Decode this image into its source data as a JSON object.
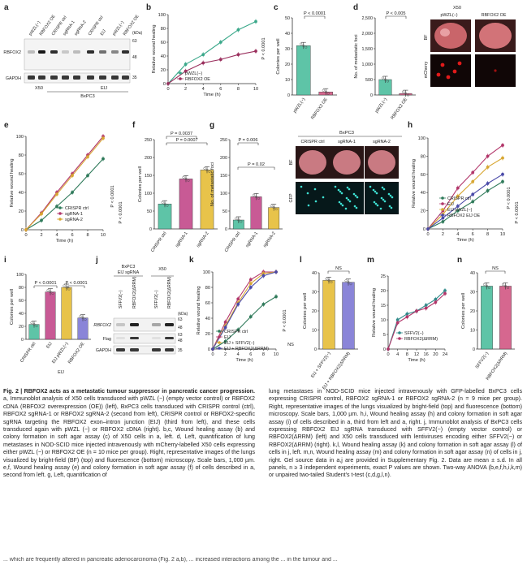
{
  "panels": {
    "a": {
      "letter": "a",
      "lanes": [
        "pWZL(−)",
        "RBFOX2 OE",
        "CRISPR ctrl",
        "sgRNA-1",
        "sgRNA-2",
        "CRISPR ctrl",
        "EIJ",
        "pWZL(−)",
        "RBFOX2 OE"
      ],
      "kda_label": "(kDa)",
      "kda": [
        "63",
        "48",
        "35"
      ],
      "rows": [
        "RBFOX2",
        "GAPDH"
      ],
      "group1": "X50",
      "group2": "EIJ",
      "group3": "BxPC3"
    },
    "b": {
      "letter": "b",
      "ylabel": "Relative wound healing",
      "xlabel": "Time (h)",
      "stat": "P < 0.0001"
    },
    "c": {
      "letter": "c",
      "ylabel": "Colonies per well",
      "stat": "P < 0.0001"
    },
    "d": {
      "letter": "d",
      "ylabel": "No. of metastatic foci",
      "stat": "P < 0.005",
      "img_group": "X50",
      "img_cols": [
        "pWZL(−)",
        "RBFOX2 OE"
      ],
      "img_rows": [
        "BF",
        "mCherry"
      ]
    },
    "e": {
      "letter": "e",
      "ylabel": "Relative wound healing",
      "xlabel": "Time (h)",
      "stat1": "P < 0.0001",
      "stat2": "P < 0.0001"
    },
    "f": {
      "letter": "f",
      "ylabel": "Colonies per well",
      "stat1": "P = 0.0037",
      "stat2": "P = 0.0007"
    },
    "g": {
      "letter": "g",
      "ylabel": "No. of metastatic foci",
      "stat1": "P = 0.006",
      "stat2": "P = 0.02",
      "img_group": "BxPC3",
      "img_cols": [
        "CRISPR ctrl",
        "sgRNA-1",
        "sgRNA-2"
      ],
      "img_rows": [
        "BF",
        "GFP"
      ]
    },
    "h": {
      "letter": "h",
      "ylabel": "Relative wound healing",
      "xlabel": "Time (h)",
      "stat1": "P < 0.0001",
      "stat2": "P < 0.0001"
    },
    "i": {
      "letter": "i",
      "ylabel": "Colonies per well",
      "stat1": "P < 0.0001",
      "stat2": "P < 0.0001",
      "group": "EIJ"
    },
    "j": {
      "letter": "j",
      "group1": "BxPC3",
      "group1b": "EIJ sgRNA",
      "group2": "X50",
      "lanes": [
        "SFFV2(−)",
        "RBFOX2(ΔRRM)",
        "SFFV2(−)",
        "RBFOX2(ΔRRM)"
      ],
      "rows": [
        "RBFOX2",
        "Flag",
        "GAPDH"
      ],
      "kda": [
        "63",
        "48",
        "63",
        "48",
        "35"
      ],
      "kda_label": "(kDa)"
    },
    "k": {
      "letter": "k",
      "ylabel": "Relative wound healing",
      "xlabel": "Time (h)",
      "stat1": "P < 0.0001",
      "stat2": "NS"
    },
    "l": {
      "letter": "l",
      "ylabel": "Colonies per well",
      "stat": "NS"
    },
    "m": {
      "letter": "m",
      "ylabel": "Relative wound healing",
      "xlabel": "Time (h)"
    },
    "n": {
      "letter": "n",
      "ylabel": "Colonies per well",
      "stat": "NS"
    }
  },
  "chart_data": [
    {
      "panel": "b",
      "type": "line",
      "xlabel": "Time (h)",
      "ylabel": "Relative wound healing",
      "x": [
        0,
        2,
        4,
        6,
        8,
        10
      ],
      "ylim": [
        0,
        100
      ],
      "xticks": [
        "0",
        "2",
        "4",
        "6",
        "8",
        "10"
      ],
      "yticks": [
        "0",
        "20",
        "40",
        "60",
        "80",
        "100"
      ],
      "series": [
        {
          "name": "pWZL(−)",
          "color": "#3aa88a",
          "values": [
            0,
            28,
            42,
            60,
            78,
            90
          ]
        },
        {
          "name": "RBFOX2 OE",
          "color": "#9a2f5d",
          "values": [
            0,
            18,
            30,
            35,
            42,
            47
          ]
        }
      ]
    },
    {
      "panel": "c",
      "type": "bar",
      "categories": [
        "pWZL(−)",
        "RBFOX2 OE"
      ],
      "values": [
        32,
        2
      ],
      "colors": [
        "#5ec4a7",
        "#d6678f"
      ],
      "ylim": [
        0,
        50
      ],
      "yticks": [
        "0",
        "10",
        "20",
        "30",
        "40",
        "50"
      ]
    },
    {
      "panel": "d",
      "type": "bar",
      "categories": [
        "pWZL(−)",
        "RBFOX2 OE"
      ],
      "values": [
        500,
        50
      ],
      "colors": [
        "#5ec4a7",
        "#d6678f"
      ],
      "ylim": [
        0,
        2500
      ],
      "yticks": [
        "0",
        "500",
        "1,000",
        "1,500",
        "2,000",
        "2,500"
      ]
    },
    {
      "panel": "e",
      "type": "line",
      "xlabel": "Time (h)",
      "ylabel": "Relative wound healing",
      "x": [
        0,
        2,
        4,
        6,
        8,
        10
      ],
      "ylim": [
        0,
        100
      ],
      "xticks": [
        "0",
        "2",
        "4",
        "6",
        "8",
        "10"
      ],
      "yticks": [
        "0",
        "20",
        "40",
        "60",
        "80",
        "100"
      ],
      "series": [
        {
          "name": "CRISPR ctrl",
          "color": "#2f7a5a",
          "values": [
            0,
            10,
            25,
            40,
            58,
            76
          ]
        },
        {
          "name": "sgRNA-1",
          "color": "#b2366a",
          "values": [
            0,
            18,
            40,
            60,
            80,
            100
          ]
        },
        {
          "name": "sgRNA-2",
          "color": "#d8a733",
          "values": [
            0,
            17,
            38,
            58,
            78,
            98
          ]
        }
      ]
    },
    {
      "panel": "f",
      "type": "bar",
      "categories": [
        "CRISPR ctrl",
        "sgRNA-1",
        "sgRNA-2"
      ],
      "values": [
        70,
        140,
        165
      ],
      "colors": [
        "#5ec4a7",
        "#c85a95",
        "#e8c34a"
      ],
      "ylim": [
        0,
        250
      ],
      "yticks": [
        "0",
        "50",
        "100",
        "150",
        "200",
        "250"
      ]
    },
    {
      "panel": "g",
      "type": "bar",
      "categories": [
        "CRISPR ctrl",
        "sgRNA-1",
        "sgRNA-2"
      ],
      "values": [
        25,
        90,
        60
      ],
      "colors": [
        "#5ec4a7",
        "#c85a95",
        "#e8c34a"
      ],
      "ylim": [
        0,
        250
      ],
      "yticks": [
        "0",
        "50",
        "100",
        "150",
        "200",
        "250"
      ]
    },
    {
      "panel": "h",
      "type": "line",
      "xlabel": "Time (h)",
      "ylabel": "Relative wound healing",
      "x": [
        0,
        2,
        4,
        6,
        8,
        10
      ],
      "ylim": [
        0,
        100
      ],
      "xticks": [
        "0",
        "2",
        "4",
        "6",
        "8",
        "10"
      ],
      "yticks": [
        "0",
        "20",
        "40",
        "60",
        "80",
        "100"
      ],
      "series": [
        {
          "name": "CRISPR ctrl",
          "color": "#2f7a5a",
          "values": [
            0,
            8,
            20,
            30,
            42,
            52
          ]
        },
        {
          "name": "EIJ",
          "color": "#b2366a",
          "values": [
            0,
            20,
            45,
            62,
            80,
            92
          ]
        },
        {
          "name": "EIJ pWZL(−)",
          "color": "#d8a733",
          "values": [
            0,
            16,
            36,
            52,
            68,
            78
          ]
        },
        {
          "name": "RBFOX2 EIJ OE",
          "color": "#4a4aa8",
          "values": [
            0,
            12,
            25,
            38,
            50,
            60
          ]
        }
      ]
    },
    {
      "panel": "i",
      "type": "bar",
      "categories": [
        "CRISPR ctrl",
        "EIJ",
        "EIJ pWZL(−)",
        "RBFOX2 OE"
      ],
      "values": [
        23,
        73,
        80,
        33
      ],
      "colors": [
        "#5ec4a7",
        "#c85a95",
        "#e8c34a",
        "#8a85d8"
      ],
      "ylim": [
        0,
        100
      ],
      "yticks": [
        "0",
        "20",
        "40",
        "60",
        "80",
        "100"
      ]
    },
    {
      "panel": "k",
      "type": "line",
      "xlabel": "Time (h)",
      "ylabel": "Relative wound healing",
      "x": [
        0,
        2,
        4,
        6,
        8,
        10
      ],
      "ylim": [
        0,
        100
      ],
      "xticks": [
        "0",
        "2",
        "4",
        "6",
        "8",
        "10"
      ],
      "yticks": [
        "0",
        "20",
        "40",
        "60",
        "80",
        "100"
      ],
      "series": [
        {
          "name": "CRISPR ctrl",
          "color": "#2f7a5a",
          "values": [
            0,
            10,
            25,
            42,
            58,
            68
          ]
        },
        {
          "name": "EIJ",
          "color": "#b2366a",
          "values": [
            0,
            35,
            65,
            90,
            100,
            100
          ]
        },
        {
          "name": "EIJ + SFFV2(−)",
          "color": "#d8a733",
          "values": [
            0,
            30,
            60,
            85,
            98,
            100
          ]
        },
        {
          "name": "EIJ + RBFOX2(ΔRRM)",
          "color": "#4a4aa8",
          "values": [
            0,
            28,
            58,
            80,
            95,
            100
          ]
        }
      ]
    },
    {
      "panel": "l",
      "type": "bar",
      "categories": [
        "EIJ + SFFV2(−)",
        "EIJ + RBFOX2(ΔRRM)"
      ],
      "values": [
        36,
        35
      ],
      "colors": [
        "#e8c34a",
        "#8a85d8"
      ],
      "ylim": [
        0,
        40
      ],
      "yticks": [
        "0",
        "10",
        "20",
        "30",
        "40"
      ]
    },
    {
      "panel": "m",
      "type": "line",
      "xlabel": "Time (h)",
      "ylabel": "Relative wound healing",
      "x": [
        0,
        4,
        8,
        12,
        16,
        20,
        24
      ],
      "ylim": [
        0,
        25
      ],
      "xticks": [
        "0",
        "4",
        "8",
        "12",
        "16",
        "20",
        "24"
      ],
      "yticks": [
        "0",
        "5",
        "10",
        "15",
        "20",
        "25"
      ],
      "series": [
        {
          "name": "SFFV2(−)",
          "color": "#2f8a8a",
          "values": [
            0,
            10,
            12,
            13,
            15,
            17,
            20
          ]
        },
        {
          "name": "RBFOX2(ΔRRM)",
          "color": "#b2366a",
          "values": [
            0,
            9,
            11,
            13,
            14,
            16,
            19
          ]
        }
      ]
    },
    {
      "panel": "n",
      "type": "bar",
      "categories": [
        "SFFV2(−)",
        "RBFOX2(ΔRRM)"
      ],
      "values": [
        33,
        33
      ],
      "colors": [
        "#5ec4a7",
        "#d6678f"
      ],
      "ylim": [
        0,
        40
      ],
      "yticks": [
        "0",
        "10",
        "20",
        "30",
        "40"
      ]
    }
  ],
  "caption": {
    "title": "Fig. 2 | RBFOX2 acts as a metastatic tumour suppressor in pancreatic cancer progression.",
    "left": "a, Immunoblot analysis of X50 cells transduced with pWZL (−) (empty vector control) or RBFOX2 cDNA (RBFOX2 overexpression (OE)) (left), BxPC3 cells transduced with CRISPR control (ctrl), RBFOX2 sgRNA-1 or RBFOX2 sgRNA-2 (second from left), CRISPR control or RBFOX2-specific sgRNA targeting the RBFOX2 exon–intron junction (EIJ) (third from left), and these cells transduced again with pWZL (−) or RBFOX2 cDNA (right). b,c, Wound healing assay (b) and colony formation in soft agar assay (c) of X50 cells in a, left. d, Left, quantification of lung metastases in NOD-SCID mice injected intravenously with mCherry-labelled X50 cells expressing either pWZL (−) or RBFOX2 OE (n = 10 mice per group). Right, representative images of the lungs visualized by bright-field (BF) (top) and fluorescence (bottom) microscopy. Scale bars, 1,000 µm. e,f, Wound healing assay (e) and colony formation in soft agar assay (f) of cells described in a, second from left. g, Left, quantification of",
    "right": "lung metastases in NOD-SCID mice injected intravenously with GFP-labelled BxPC3 cells expressing CRISPR control, RBFOX2 sgRNA-1 or RBFOX2 sgRNA-2 (n = 9 mice per group). Right, representative images of the lungs visualized by bright-field (top) and fluorescence (bottom) microscopy. Scale bars, 1,000 µm. h,i, Wound healing assay (h) and colony formation in soft agar assay (i) of cells described in a, third from left and a, right. j, Immunoblot analysis of BxPC3 cells expressing RBFOX2 EIJ sgRNA transduced with SFFV2(−) (empty vector control) or RBFOX2(ΔRRM) (left) and X50 cells transduced with lentiviruses encoding either SFFV2(−) or RBFOX2(ΔRRM) (right). k,l, Wound healing assay (k) and colony formation in soft agar assay (l) of cells in j, left. m,n, Wound healing assay (m) and colony formation in soft agar assay (n) of cells in j, right. Gel source data in a,j are provided in Supplementary Fig. 2. Data are mean ± s.d. In all panels, n ≥ 3 independent experiments, exact P values are shown. Two-way ANOVA (b,e,f,h,i,k,m) or unpaired two-tailed Student's t-test (c,d,g,l,n).",
    "bottom": "... which are frequently altered in pancreatic adenocarcinoma (Fig. 2 a,b), ... increased interactions among the ... in the tumour and ..."
  }
}
